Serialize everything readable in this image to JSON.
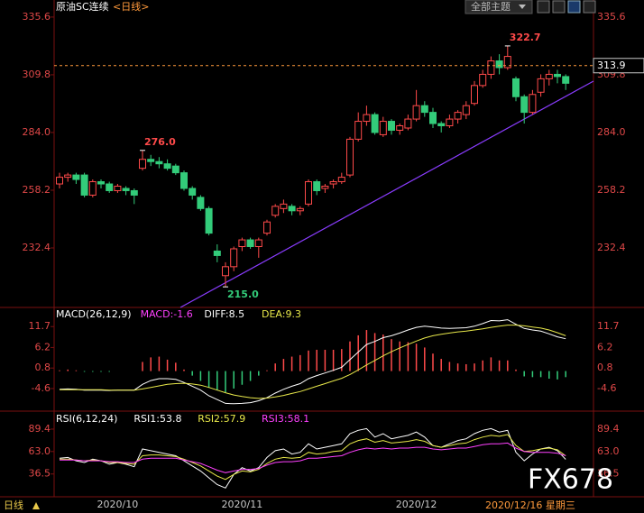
{
  "header": {
    "title": "原油SC连续",
    "period": "<日线>",
    "theme_button": "全部主题"
  },
  "footer": {
    "period": "日线",
    "date": "2020/12/16 星期三",
    "watermark": "FX678"
  },
  "chart_data": [
    {
      "type": "candlestick",
      "categories": [
        null,
        null,
        null,
        null,
        null,
        null,
        null,
        "2020/10",
        null,
        null,
        null,
        null,
        null,
        null,
        null,
        null,
        null,
        null,
        null,
        null,
        null,
        null,
        "2020/11",
        null,
        null,
        null,
        null,
        null,
        null,
        null,
        null,
        null,
        null,
        null,
        null,
        null,
        null,
        null,
        null,
        null,
        null,
        null,
        null,
        "2020/12",
        null,
        null,
        null,
        null,
        null,
        null,
        null,
        null,
        null,
        null,
        null,
        null,
        null,
        null,
        null,
        null,
        null,
        null
      ],
      "open": [
        261,
        264,
        265,
        265,
        256,
        262,
        261,
        258,
        259,
        258,
        268,
        272,
        271,
        270,
        269,
        266,
        259,
        255,
        250,
        231,
        220,
        224,
        233,
        236,
        233,
        239,
        247,
        250,
        251,
        249,
        252,
        262,
        259,
        261,
        262,
        265,
        281,
        289,
        292,
        283,
        289,
        285,
        286,
        290,
        296,
        293,
        288,
        287,
        290,
        292,
        297,
        305,
        310,
        316,
        313,
        308,
        300,
        293,
        302,
        308,
        310,
        309
      ],
      "high": [
        266,
        266,
        266,
        266,
        263,
        263,
        262,
        261,
        260,
        259,
        276,
        274,
        273,
        272,
        270,
        267,
        260,
        256,
        251,
        234,
        226,
        233,
        237,
        237,
        237,
        245,
        252,
        254,
        252,
        251,
        263,
        263,
        261,
        263,
        266,
        282,
        293,
        296,
        293,
        291,
        290,
        288,
        292,
        303,
        298,
        295,
        289,
        292,
        294,
        298,
        307,
        312,
        318,
        319,
        322.7,
        309,
        301,
        303,
        310,
        312,
        312,
        310
      ],
      "low": [
        259,
        262,
        261,
        255,
        255,
        259,
        257,
        257,
        256,
        252,
        267,
        269,
        268,
        267,
        265,
        258,
        254,
        249,
        238,
        226,
        215,
        222,
        231,
        232,
        228,
        238,
        246,
        248,
        247,
        247,
        251,
        256,
        257,
        259,
        261,
        264,
        280,
        287,
        283,
        282,
        283,
        283,
        285,
        289,
        291,
        286,
        284,
        286,
        288,
        290,
        296,
        304,
        308,
        310,
        312,
        298,
        288,
        292,
        300,
        305,
        306,
        303
      ],
      "close": [
        264,
        265,
        263,
        256,
        262,
        261,
        258,
        260,
        258,
        256,
        272,
        271,
        270,
        268,
        266,
        259,
        256,
        250,
        239,
        229,
        224,
        232,
        236,
        233,
        236,
        244,
        251,
        252,
        249,
        250,
        262,
        258,
        260,
        262,
        264,
        281,
        289,
        292,
        284,
        289,
        285,
        287,
        290,
        296,
        293,
        288,
        287,
        290,
        293,
        296,
        305,
        310,
        316,
        313,
        318,
        300,
        293,
        301,
        308,
        310,
        309,
        306
      ],
      "up_color": "#ff4a4a",
      "down_color": "#33cc7a",
      "ylim": [
        206.2,
        340.0
      ],
      "yticks": [
        335.6,
        309.8,
        {
          "value": 284.0,
          "label": "284.0"
        },
        258.2,
        232.4
      ],
      "annotations": [
        {
          "value": 276.0,
          "label": "276.0"
        },
        {
          "value": 322.7,
          "label": "322.7"
        },
        {
          "value": 215.0,
          "label": "215.0"
        }
      ],
      "last_price": {
        "value": 313.9,
        "label": "313.9"
      },
      "grid": false
    },
    {
      "type": "combo",
      "title": "MACD(26,12,9)",
      "series": [
        {
          "name": "MACD:-1.6",
          "type": "bar",
          "up_color": "#ff4a4a",
          "down_color": "#33cc7a",
          "values": [
            0.2,
            0.4,
            0.2,
            -0.2,
            -0.2,
            -0.2,
            -0.2,
            0,
            0,
            0,
            2.4,
            3.6,
            3.8,
            3.0,
            2.2,
            0.4,
            -1.2,
            -2.6,
            -4.4,
            -5.0,
            -5.6,
            -4.6,
            -3.6,
            -2.6,
            -1.2,
            0.2,
            2.0,
            3.2,
            3.8,
            4.2,
            5.4,
            5.6,
            5.6,
            5.6,
            5.8,
            7.8,
            9.4,
            10.8,
            10.0,
            9.6,
            8.4,
            7.8,
            7.6,
            7.2,
            6.2,
            4.6,
            3.2,
            2.4,
            2.0,
            1.8,
            2.0,
            2.8,
            3.6,
            2.8,
            2.8,
            0.4,
            -1.4,
            -1.6,
            -1.6,
            -2.0,
            -2.2,
            -1.6
          ],
          "color": "#ff40ff"
        },
        {
          "name": "DIFF:8.5",
          "type": "line",
          "color": "#ffffff",
          "values": [
            -4.8,
            -4.7,
            -4.8,
            -5.0,
            -5.0,
            -5.0,
            -5.1,
            -5.0,
            -5.0,
            -5.0,
            -3.5,
            -2.5,
            -2.0,
            -2.0,
            -2.2,
            -3.0,
            -4.0,
            -5.0,
            -6.5,
            -7.5,
            -8.5,
            -8.6,
            -8.5,
            -8.3,
            -7.8,
            -7.0,
            -5.8,
            -4.8,
            -4.0,
            -3.3,
            -2.0,
            -1.2,
            -0.5,
            0.2,
            1.0,
            3.0,
            5.0,
            7.0,
            7.8,
            8.8,
            9.3,
            10.0,
            10.8,
            11.5,
            11.8,
            11.6,
            11.3,
            11.2,
            11.3,
            11.4,
            11.8,
            12.5,
            13.3,
            13.2,
            13.5,
            12.3,
            11.2,
            10.8,
            10.5,
            9.8,
            9.0,
            8.5
          ]
        },
        {
          "name": "DEA:9.3",
          "type": "line",
          "color": "#e8e84a",
          "values": [
            -4.9,
            -4.9,
            -4.9,
            -4.9,
            -4.9,
            -4.9,
            -5.0,
            -5.0,
            -5.0,
            -5.0,
            -4.7,
            -4.3,
            -3.9,
            -3.5,
            -3.3,
            -3.2,
            -3.4,
            -3.7,
            -4.3,
            -5.0,
            -5.7,
            -6.3,
            -6.7,
            -7.0,
            -7.2,
            -7.1,
            -6.8,
            -6.4,
            -5.9,
            -5.4,
            -4.7,
            -4.0,
            -3.3,
            -2.6,
            -1.9,
            -0.9,
            0.3,
            1.6,
            2.8,
            4.0,
            5.1,
            6.1,
            7.0,
            7.9,
            8.7,
            9.3,
            9.7,
            10.0,
            10.3,
            10.5,
            10.8,
            11.1,
            11.5,
            11.8,
            12.1,
            12.1,
            11.9,
            11.6,
            11.3,
            10.8,
            10.1,
            9.3
          ]
        }
      ],
      "ylim": [
        -10.3,
        16.5
      ],
      "yticks": [
        11.7,
        6.2,
        0.8,
        -4.6
      ],
      "grid": false
    },
    {
      "type": "line",
      "title": "RSI(6,12,24)",
      "series": [
        {
          "name": "RSI1:53.8",
          "color": "#ffffff",
          "values": [
            55,
            56,
            52,
            50,
            54,
            52,
            48,
            50,
            48,
            45,
            66,
            64,
            62,
            60,
            58,
            52,
            46,
            40,
            32,
            24,
            20,
            36,
            44,
            40,
            44,
            56,
            64,
            66,
            60,
            62,
            72,
            66,
            68,
            70,
            72,
            84,
            88,
            90,
            80,
            84,
            78,
            80,
            82,
            86,
            80,
            70,
            68,
            72,
            76,
            78,
            84,
            88,
            90,
            86,
            88,
            62,
            52,
            60,
            66,
            68,
            64,
            53.8
          ]
        },
        {
          "name": "RSI2:57.9",
          "color": "#e8e84a",
          "values": [
            54,
            54,
            53,
            52,
            53,
            52,
            50,
            50,
            49,
            48,
            58,
            59,
            59,
            58,
            57,
            54,
            50,
            46,
            40,
            34,
            30,
            36,
            40,
            39,
            42,
            49,
            54,
            56,
            55,
            56,
            62,
            60,
            61,
            63,
            64,
            72,
            76,
            78,
            74,
            76,
            73,
            74,
            75,
            77,
            75,
            70,
            68,
            70,
            72,
            73,
            77,
            80,
            82,
            81,
            83,
            70,
            63,
            64,
            66,
            67,
            65,
            57.9
          ]
        },
        {
          "name": "RSI3:58.1",
          "color": "#ff40ff",
          "values": [
            53,
            53,
            53,
            52,
            52,
            52,
            51,
            51,
            50,
            50,
            54,
            55,
            55,
            55,
            55,
            53,
            51,
            49,
            45,
            41,
            38,
            40,
            42,
            42,
            43,
            47,
            50,
            51,
            51,
            52,
            55,
            55,
            56,
            57,
            58,
            62,
            65,
            67,
            66,
            67,
            66,
            67,
            67,
            68,
            68,
            66,
            65,
            66,
            67,
            67,
            69,
            71,
            72,
            72,
            73,
            67,
            63,
            62,
            62,
            62,
            61,
            58.1
          ]
        }
      ],
      "ylim": [
        10.7,
        108.5
      ],
      "yticks": [
        89.4,
        {
          "value": 63.0,
          "label": "63.0"
        },
        36.5
      ],
      "grid": false
    }
  ]
}
